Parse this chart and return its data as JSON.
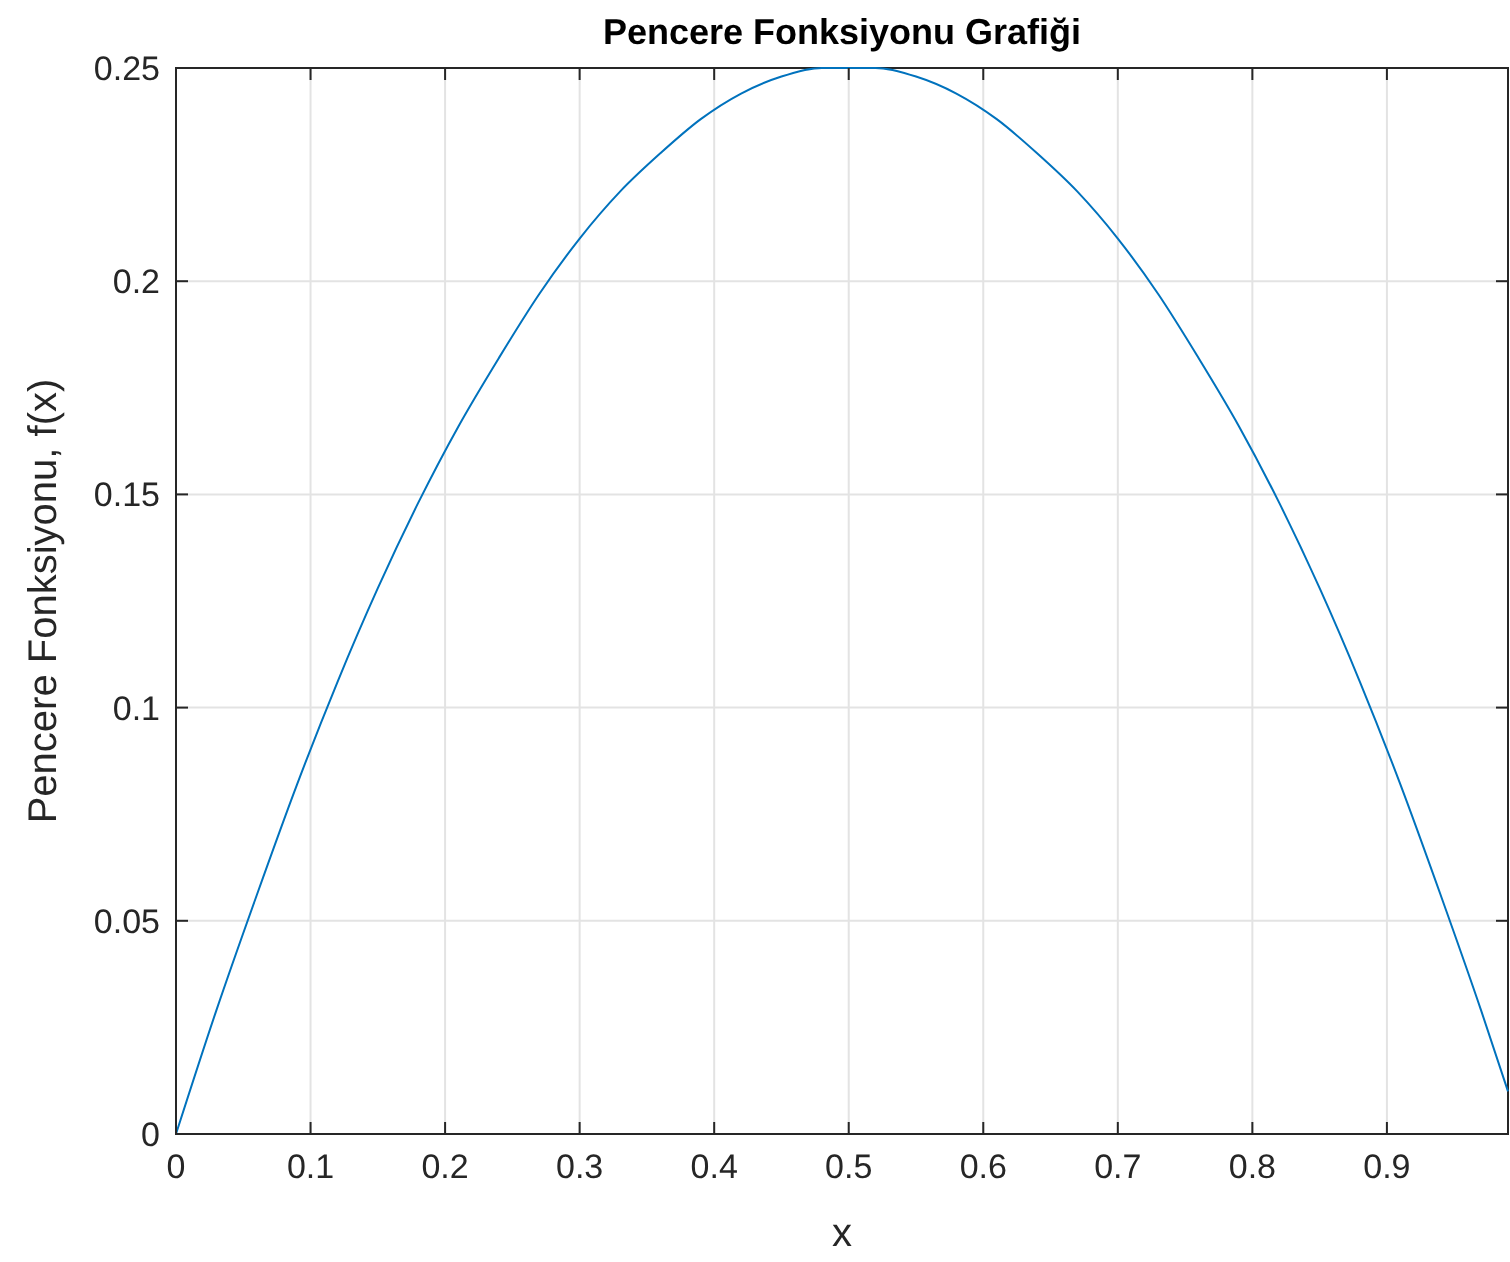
{
  "chart_data": {
    "type": "line",
    "title": "Pencere Fonksiyonu Grafiği",
    "xlabel": "x",
    "ylabel": "Pencere Fonksiyonu, f(x)",
    "x": [
      0,
      0.03,
      0.06,
      0.09,
      0.12,
      0.15,
      0.18,
      0.21,
      0.24,
      0.27,
      0.3,
      0.33,
      0.36,
      0.39,
      0.42,
      0.45,
      0.48,
      0.5,
      0.52,
      0.55,
      0.58,
      0.61,
      0.64,
      0.67,
      0.7,
      0.73,
      0.76,
      0.79,
      0.82,
      0.85,
      0.88,
      0.91,
      0.94,
      0.97,
      0.99
    ],
    "series": [
      {
        "color": "#0072bd",
        "values": [
          0,
          0.029,
          0.056,
          0.082,
          0.106,
          0.128,
          0.148,
          0.166,
          0.182,
          0.197,
          0.21,
          0.221,
          0.23,
          0.238,
          0.244,
          0.248,
          0.25,
          0.25,
          0.25,
          0.248,
          0.244,
          0.238,
          0.23,
          0.221,
          0.21,
          0.197,
          0.182,
          0.166,
          0.148,
          0.128,
          0.106,
          0.082,
          0.056,
          0.029,
          0.01
        ]
      }
    ],
    "xlim": [
      0,
      0.99
    ],
    "ylim": [
      0,
      0.25
    ],
    "xticks": [
      0,
      0.1,
      0.2,
      0.3,
      0.4,
      0.5,
      0.6,
      0.7,
      0.8,
      0.9
    ],
    "yticks": [
      0,
      0.05,
      0.1,
      0.15,
      0.2,
      0.25
    ],
    "grid": true,
    "marker": "none",
    "line_style": "solid"
  }
}
